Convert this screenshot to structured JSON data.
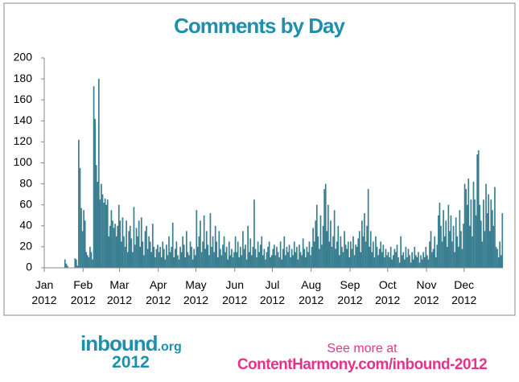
{
  "chart_data": {
    "type": "bar",
    "title": "Comments by Day",
    "categories": [
      "Jan 2012",
      null,
      null,
      null,
      null,
      null,
      null,
      null,
      null,
      null,
      null,
      null,
      null,
      null,
      null,
      null,
      null,
      null,
      null,
      null,
      null,
      null,
      null,
      null,
      null,
      null,
      null,
      null,
      null,
      null,
      null,
      "Feb 2012",
      null,
      null,
      null,
      null,
      null,
      null,
      null,
      null,
      null,
      null,
      null,
      null,
      null,
      null,
      null,
      null,
      null,
      null,
      null,
      null,
      null,
      null,
      null,
      null,
      null,
      null,
      null,
      null,
      "Mar 2012",
      null,
      null,
      null,
      null,
      null,
      null,
      null,
      null,
      null,
      null,
      null,
      null,
      null,
      null,
      null,
      null,
      null,
      null,
      null,
      null,
      null,
      null,
      null,
      null,
      null,
      null,
      null,
      null,
      null,
      null,
      "Apr 2012",
      null,
      null,
      null,
      null,
      null,
      null,
      null,
      null,
      null,
      null,
      null,
      null,
      null,
      null,
      null,
      null,
      null,
      null,
      null,
      null,
      null,
      null,
      null,
      null,
      null,
      null,
      null,
      null,
      null,
      "May 2012",
      null,
      null,
      null,
      null,
      null,
      null,
      null,
      null,
      null,
      null,
      null,
      null,
      null,
      null,
      null,
      null,
      null,
      null,
      null,
      null,
      null,
      null,
      null,
      null,
      null,
      null,
      null,
      null,
      null,
      null,
      "Jun 2012",
      null,
      null,
      null,
      null,
      null,
      null,
      null,
      null,
      null,
      null,
      null,
      null,
      null,
      null,
      null,
      null,
      null,
      null,
      null,
      null,
      null,
      null,
      null,
      null,
      null,
      null,
      null,
      null,
      null,
      "Jul 2012",
      null,
      null,
      null,
      null,
      null,
      null,
      null,
      null,
      null,
      null,
      null,
      null,
      null,
      null,
      null,
      null,
      null,
      null,
      null,
      null,
      null,
      null,
      null,
      null,
      null,
      null,
      null,
      null,
      null,
      null,
      "Aug 2012",
      null,
      null,
      null,
      null,
      null,
      null,
      null,
      null,
      null,
      null,
      null,
      null,
      null,
      null,
      null,
      null,
      null,
      null,
      null,
      null,
      null,
      null,
      null,
      null,
      null,
      null,
      null,
      null,
      null,
      null,
      "Sep 2012",
      null,
      null,
      null,
      null,
      null,
      null,
      null,
      null,
      null,
      null,
      null,
      null,
      null,
      null,
      null,
      null,
      null,
      null,
      null,
      null,
      null,
      null,
      null,
      null,
      null,
      null,
      null,
      null,
      null,
      "Oct 2012",
      null,
      null,
      null,
      null,
      null,
      null,
      null,
      null,
      null,
      null,
      null,
      null,
      null,
      null,
      null,
      null,
      null,
      null,
      null,
      null,
      null,
      null,
      null,
      null,
      null,
      null,
      null,
      null,
      null,
      null,
      "Nov 2012",
      null,
      null,
      null,
      null,
      null,
      null,
      null,
      null,
      null,
      null,
      null,
      null,
      null,
      null,
      null,
      null,
      null,
      null,
      null,
      null,
      null,
      null,
      null,
      null,
      null,
      null,
      null,
      null,
      null,
      "Dec 2012",
      null,
      null,
      null,
      null,
      null,
      null,
      null,
      null,
      null,
      null,
      null,
      null,
      null,
      null,
      null,
      null,
      null,
      null,
      null,
      null,
      null,
      null,
      null,
      null,
      null,
      null,
      null,
      null,
      null,
      null
    ],
    "values": [
      0,
      0,
      0,
      0,
      0,
      0,
      0,
      0,
      0,
      0,
      0,
      0,
      0,
      0,
      0,
      0,
      8,
      4,
      2,
      0,
      0,
      0,
      0,
      0,
      9,
      8,
      2,
      122,
      95,
      57,
      35,
      55,
      45,
      15,
      12,
      10,
      20,
      15,
      8,
      173,
      142,
      98,
      82,
      180,
      65,
      80,
      70,
      62,
      66,
      60,
      65,
      30,
      40,
      55,
      45,
      38,
      42,
      30,
      40,
      60,
      45,
      25,
      48,
      30,
      20,
      45,
      15,
      35,
      40,
      28,
      15,
      58,
      22,
      38,
      30,
      45,
      20,
      48,
      25,
      12,
      35,
      40,
      18,
      30,
      25,
      15,
      42,
      20,
      10,
      18,
      22,
      15,
      20,
      10,
      25,
      18,
      8,
      22,
      12,
      30,
      15,
      20,
      43,
      10,
      18,
      25,
      12,
      8,
      20,
      15,
      30,
      22,
      10,
      35,
      15,
      12,
      25,
      20,
      8,
      18,
      12,
      55,
      20,
      30,
      45,
      15,
      25,
      50,
      18,
      35,
      22,
      12,
      52,
      20,
      30,
      15,
      40,
      25,
      10,
      35,
      18,
      12,
      22,
      30,
      15,
      20,
      8,
      25,
      12,
      18,
      10,
      15,
      30,
      15,
      25,
      10,
      20,
      12,
      35,
      18,
      22,
      8,
      40,
      15,
      28,
      12,
      20,
      65,
      18,
      10,
      25,
      15,
      22,
      30,
      12,
      18,
      8,
      15,
      20,
      25,
      10,
      12,
      18,
      22,
      12,
      20,
      15,
      10,
      25,
      8,
      18,
      30,
      12,
      20,
      15,
      22,
      10,
      18,
      12,
      25,
      15,
      20,
      8,
      22,
      15,
      12,
      28,
      18,
      10,
      20,
      15,
      25,
      12,
      20,
      38,
      25,
      45,
      60,
      30,
      18,
      50,
      22,
      40,
      75,
      80,
      35,
      60,
      25,
      45,
      20,
      30,
      55,
      18,
      25,
      40,
      12,
      30,
      20,
      15,
      35,
      22,
      18,
      25,
      10,
      25,
      18,
      30,
      12,
      22,
      20,
      28,
      35,
      15,
      45,
      30,
      52,
      25,
      40,
      75,
      20,
      35,
      15,
      25,
      10,
      30,
      20,
      12,
      18,
      25,
      15,
      22,
      10,
      18,
      12,
      15,
      10,
      20,
      8,
      12,
      18,
      15,
      22,
      10,
      5,
      30,
      12,
      15,
      8,
      20,
      10,
      18,
      12,
      5,
      15,
      8,
      20,
      12,
      10,
      15,
      5,
      12,
      8,
      15,
      10,
      20,
      12,
      8,
      25,
      35,
      15,
      18,
      30,
      10,
      22,
      50,
      62,
      40,
      25,
      55,
      30,
      45,
      20,
      60,
      35,
      50,
      25,
      40,
      15,
      48,
      30,
      20,
      55,
      35,
      18,
      42,
      80,
      75,
      60,
      85,
      40,
      65,
      30,
      82,
      65,
      50,
      108,
      112,
      60,
      45,
      25,
      65,
      35,
      80,
      52,
      70,
      35,
      65,
      55,
      40,
      77,
      20,
      18,
      10,
      25,
      12,
      52
    ],
    "color": "#3a7f91",
    "ylim": [
      0,
      200
    ],
    "yticks": [
      0,
      20,
      40,
      60,
      80,
      100,
      120,
      140,
      160,
      180,
      200
    ]
  },
  "footer": {
    "logo": "inbound",
    "logo_suffix": ".org",
    "year": "2012",
    "cta": "See more at",
    "link": "ContentHarmony.com/inbound-2012"
  }
}
